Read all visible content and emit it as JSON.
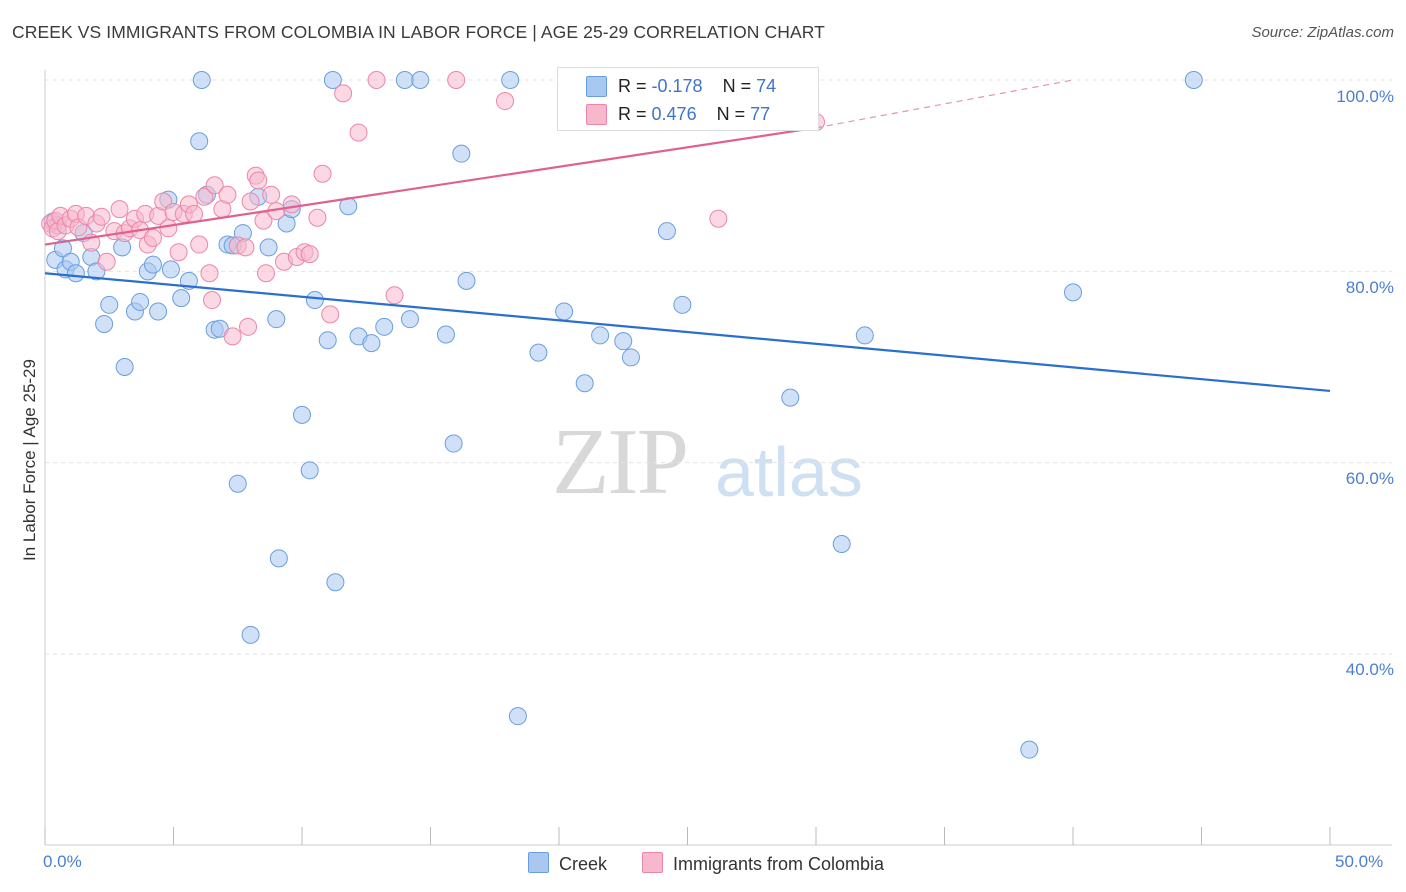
{
  "title": "CREEK VS IMMIGRANTS FROM COLOMBIA IN LABOR FORCE | AGE 25-29 CORRELATION CHART",
  "source": "Source: ZipAtlas.com",
  "watermark": {
    "zip": "ZIP",
    "atlas": "atlas"
  },
  "legend": {
    "rows": [
      {
        "r_label": "R =",
        "r_value": "-0.178",
        "n_label": "N =",
        "n_value": "74",
        "color": "#a9c8f0"
      },
      {
        "r_label": "R =",
        "r_value": "0.476",
        "n_label": "N =",
        "n_value": "77",
        "color": "#f7b8cc"
      }
    ]
  },
  "bottom_legend": [
    {
      "label": "Creek",
      "color": "#a9c8f0"
    },
    {
      "label": "Immigrants from Colombia",
      "color": "#f7b8cc"
    }
  ],
  "chart_data": {
    "type": "scatter",
    "title": "CREEK VS IMMIGRANTS FROM COLOMBIA IN LABOR FORCE | AGE 25-29 CORRELATION CHART",
    "xlabel": "",
    "ylabel": "In Labor Force | Age 25-29",
    "xlim": [
      0,
      50
    ],
    "ylim": [
      22,
      102
    ],
    "x_tick_labels": [
      "0.0%",
      "50.0%"
    ],
    "y_ticks": [
      40,
      60,
      80,
      100
    ],
    "y_tick_labels": [
      "40.0%",
      "60.0%",
      "80.0%",
      "100.0%"
    ],
    "grid": true,
    "series": [
      {
        "name": "Creek",
        "color": "#6a9ee0",
        "fill": "#a9c8f0",
        "trend": {
          "x0": 0,
          "y0": 79.8,
          "x1": 50,
          "y1": 67.5,
          "color": "#2a6fd0"
        },
        "points": [
          [
            0.3,
            85.2
          ],
          [
            0.4,
            81.2
          ],
          [
            0.5,
            84.8
          ],
          [
            0.7,
            82.4
          ],
          [
            0.8,
            80.2
          ],
          [
            1.0,
            81.0
          ],
          [
            1.2,
            79.8
          ],
          [
            1.5,
            84.0
          ],
          [
            1.8,
            81.5
          ],
          [
            2.0,
            80.0
          ],
          [
            2.3,
            74.5
          ],
          [
            2.5,
            76.5
          ],
          [
            3.0,
            82.5
          ],
          [
            3.1,
            70.0
          ],
          [
            3.5,
            75.8
          ],
          [
            3.7,
            76.8
          ],
          [
            4.0,
            80.0
          ],
          [
            4.2,
            80.7
          ],
          [
            4.4,
            75.8
          ],
          [
            4.8,
            87.5
          ],
          [
            4.9,
            80.2
          ],
          [
            5.3,
            77.2
          ],
          [
            5.6,
            79.0
          ],
          [
            6.0,
            93.6
          ],
          [
            6.1,
            100.0
          ],
          [
            6.3,
            88.0
          ],
          [
            6.6,
            73.9
          ],
          [
            6.8,
            74.0
          ],
          [
            7.1,
            82.8
          ],
          [
            7.3,
            82.7
          ],
          [
            7.5,
            57.8
          ],
          [
            7.7,
            84.0
          ],
          [
            8.0,
            42.0
          ],
          [
            8.3,
            87.8
          ],
          [
            8.7,
            82.5
          ],
          [
            9.0,
            75.0
          ],
          [
            9.1,
            50.0
          ],
          [
            9.4,
            85.0
          ],
          [
            9.6,
            86.5
          ],
          [
            10.0,
            65.0
          ],
          [
            10.3,
            59.2
          ],
          [
            10.5,
            77.0
          ],
          [
            11.0,
            72.8
          ],
          [
            11.2,
            100.0
          ],
          [
            11.3,
            47.5
          ],
          [
            11.8,
            86.8
          ],
          [
            12.2,
            73.2
          ],
          [
            12.7,
            72.5
          ],
          [
            13.2,
            74.2
          ],
          [
            14.0,
            100.0
          ],
          [
            14.2,
            75.0
          ],
          [
            14.6,
            100.0
          ],
          [
            15.6,
            73.4
          ],
          [
            15.9,
            62.0
          ],
          [
            16.2,
            92.3
          ],
          [
            16.4,
            79.0
          ],
          [
            18.1,
            100.0
          ],
          [
            18.4,
            33.5
          ],
          [
            19.2,
            71.5
          ],
          [
            20.2,
            75.8
          ],
          [
            21.0,
            68.3
          ],
          [
            21.6,
            73.3
          ],
          [
            22.5,
            72.7
          ],
          [
            22.8,
            71.0
          ],
          [
            24.2,
            84.2
          ],
          [
            24.8,
            76.5
          ],
          [
            29.0,
            66.8
          ],
          [
            31.0,
            51.5
          ],
          [
            31.9,
            73.3
          ],
          [
            38.3,
            30.0
          ],
          [
            40.0,
            77.8
          ],
          [
            44.7,
            100.0
          ]
        ]
      },
      {
        "name": "Immigrants from Colombia",
        "color": "#ec86a8",
        "fill": "#f7b8cc",
        "trend": {
          "x0": 0,
          "y0": 82.8,
          "x1": 30,
          "y1": 95.0,
          "dash_to_x": 40,
          "dash_to_y": 100.0,
          "color": "#e06090"
        },
        "points": [
          [
            0.2,
            85.0
          ],
          [
            0.3,
            84.5
          ],
          [
            0.4,
            85.3
          ],
          [
            0.5,
            84.2
          ],
          [
            0.6,
            85.8
          ],
          [
            0.8,
            84.8
          ],
          [
            1.0,
            85.5
          ],
          [
            1.2,
            86.0
          ],
          [
            1.3,
            84.6
          ],
          [
            1.6,
            85.8
          ],
          [
            1.8,
            83.0
          ],
          [
            2.0,
            85.0
          ],
          [
            2.2,
            85.7
          ],
          [
            2.4,
            81.0
          ],
          [
            2.7,
            84.2
          ],
          [
            2.9,
            86.5
          ],
          [
            3.1,
            84.0
          ],
          [
            3.3,
            84.5
          ],
          [
            3.5,
            85.5
          ],
          [
            3.7,
            84.3
          ],
          [
            3.9,
            86.0
          ],
          [
            4.0,
            82.8
          ],
          [
            4.2,
            83.5
          ],
          [
            4.4,
            85.8
          ],
          [
            4.6,
            87.3
          ],
          [
            4.8,
            84.5
          ],
          [
            5.0,
            86.2
          ],
          [
            5.2,
            82.0
          ],
          [
            5.4,
            86.0
          ],
          [
            5.6,
            87.0
          ],
          [
            5.8,
            86.0
          ],
          [
            6.0,
            82.8
          ],
          [
            6.2,
            87.8
          ],
          [
            6.4,
            79.8
          ],
          [
            6.5,
            77.0
          ],
          [
            6.6,
            89.0
          ],
          [
            6.9,
            86.5
          ],
          [
            7.1,
            88.0
          ],
          [
            7.3,
            73.2
          ],
          [
            7.5,
            82.7
          ],
          [
            7.8,
            82.5
          ],
          [
            7.9,
            74.2
          ],
          [
            8.0,
            87.3
          ],
          [
            8.2,
            90.0
          ],
          [
            8.3,
            89.5
          ],
          [
            8.5,
            85.3
          ],
          [
            8.6,
            79.8
          ],
          [
            8.8,
            88.0
          ],
          [
            9.0,
            86.3
          ],
          [
            9.3,
            81.0
          ],
          [
            9.6,
            87.0
          ],
          [
            9.8,
            81.5
          ],
          [
            10.1,
            82.0
          ],
          [
            10.3,
            81.8
          ],
          [
            10.6,
            85.6
          ],
          [
            10.8,
            90.2
          ],
          [
            11.1,
            75.5
          ],
          [
            11.6,
            98.6
          ],
          [
            12.2,
            94.5
          ],
          [
            12.9,
            100.0
          ],
          [
            13.6,
            77.5
          ],
          [
            16.0,
            100.0
          ],
          [
            17.9,
            97.8
          ],
          [
            26.2,
            85.5
          ],
          [
            30.0,
            95.6
          ]
        ]
      }
    ]
  }
}
